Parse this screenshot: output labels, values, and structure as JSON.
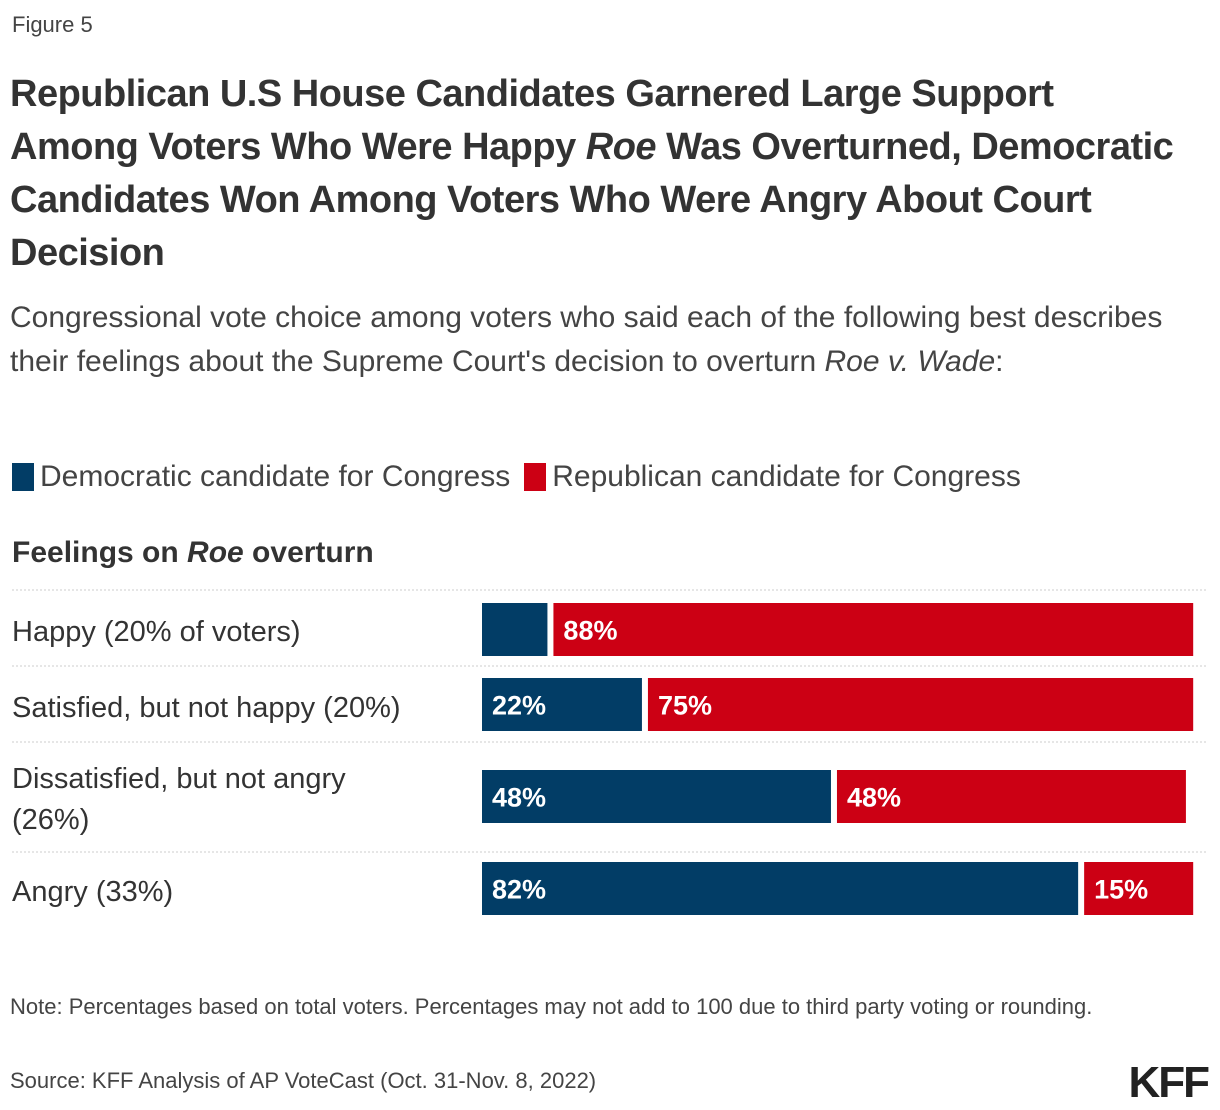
{
  "figure_label": "Figure 5",
  "title_parts": [
    {
      "text": "Republican U.S House Candidates Garnered Large Support Among Voters Who Were Happy ",
      "italic": false
    },
    {
      "text": "Roe",
      "italic": true
    },
    {
      "text": " Was Overturned, Democratic Candidates Won Among Voters Who Were Angry About Court Decision",
      "italic": false
    }
  ],
  "subtitle_parts": [
    {
      "text": "Congressional vote choice among voters who said each of the following best describes their feelings about the Supreme Court's decision to overturn ",
      "italic": false
    },
    {
      "text": "Roe v. Wade",
      "italic": true
    },
    {
      "text": ":",
      "italic": false
    }
  ],
  "column_header_parts": [
    {
      "text": "Feelings on ",
      "italic": false
    },
    {
      "text": "Roe",
      "italic": true
    },
    {
      "text": " overturn",
      "italic": false
    }
  ],
  "note": "Note: Percentages based on total voters. Percentages may not add to 100 due to third party voting or rounding.",
  "source": "Source: KFF Analysis of AP VoteCast (Oct. 31-Nov. 8, 2022)",
  "logo": "KFF",
  "chart_data": {
    "type": "bar",
    "orientation": "horizontal",
    "stacked": true,
    "categories": [
      [
        "Happy (20% of voters)"
      ],
      [
        "Satisfied, but not happy (20%)"
      ],
      [
        "Dissatisfied, but not angry",
        "(26%)"
      ],
      [
        "Angry (33%)"
      ]
    ],
    "series": [
      {
        "name": "Democratic candidate for Congress",
        "color": "#023d66",
        "values": [
          9,
          22,
          48,
          82
        ],
        "labels": [
          "",
          "22%",
          "48%",
          "82%"
        ]
      },
      {
        "name": "Republican candidate for Congress",
        "color": "#cc0014",
        "values": [
          88,
          75,
          48,
          15
        ],
        "labels": [
          "88%",
          "75%",
          "48%",
          "15%"
        ]
      }
    ],
    "xlim": [
      0,
      100
    ],
    "legend": "top-left",
    "grid": false
  }
}
